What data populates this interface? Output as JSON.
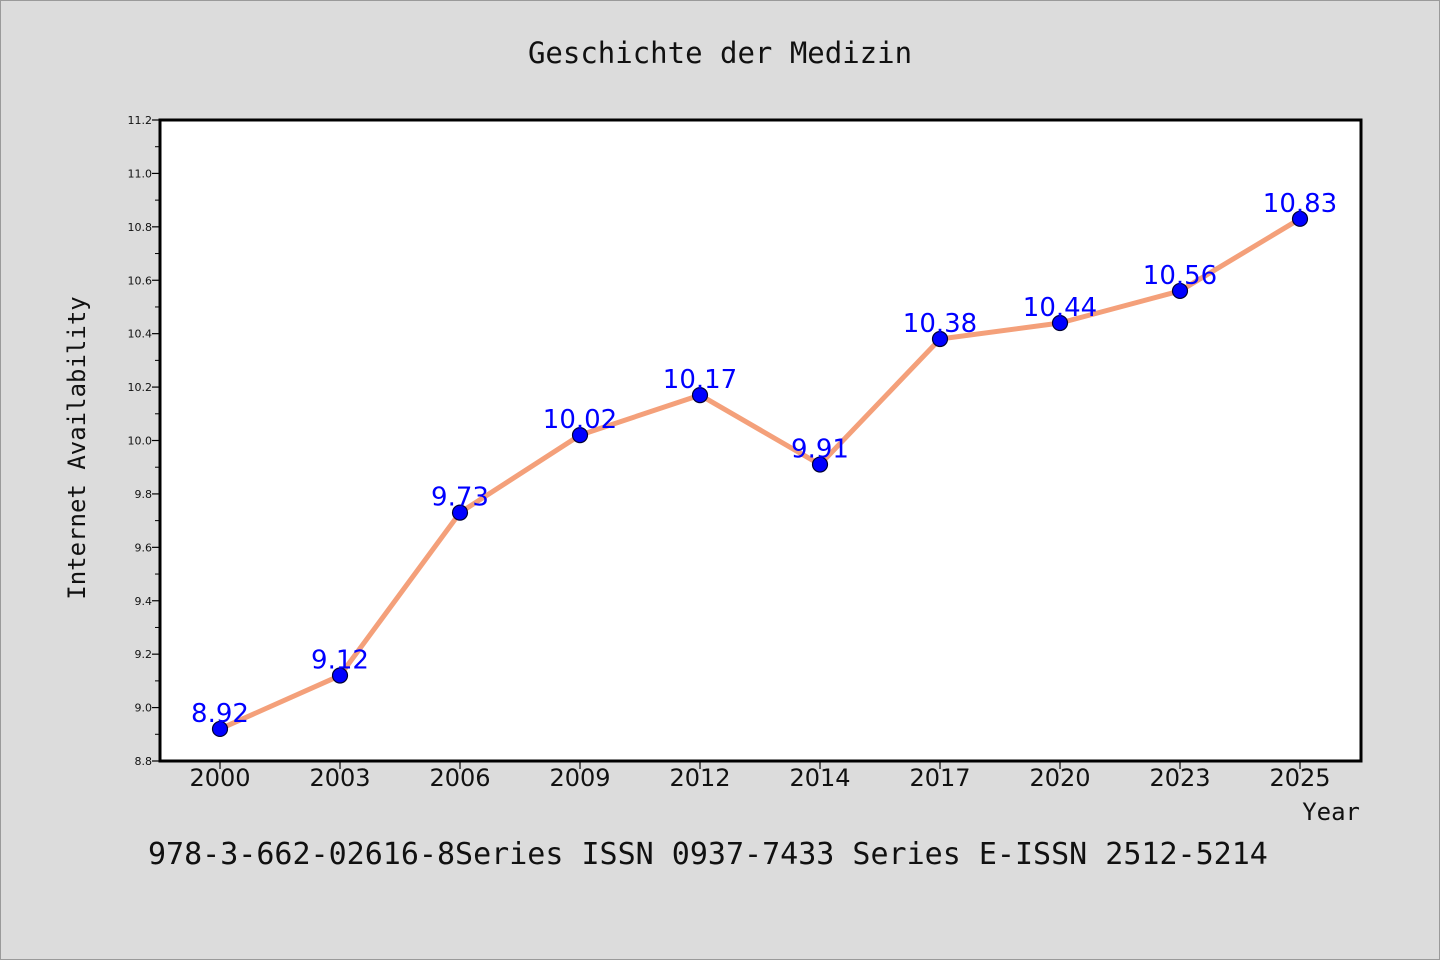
{
  "chart_data": {
    "type": "line",
    "title": "Geschichte der Medizin",
    "xlabel": "Year",
    "ylabel": "Internet Availability",
    "categories": [
      "2000",
      "2003",
      "2006",
      "2009",
      "2012",
      "2014",
      "2017",
      "2020",
      "2023",
      "2025"
    ],
    "series": [
      {
        "values": [
          8.92,
          9.12,
          9.73,
          10.02,
          10.17,
          9.91,
          10.38,
          10.44,
          10.56,
          10.83
        ],
        "data_labels": [
          "8.92",
          "9.12",
          "9.73",
          "10.02",
          "10.17",
          "9.91",
          "10.38",
          "10.44",
          "10.56",
          "10.83"
        ]
      }
    ],
    "ylim": [
      8.8,
      11.2
    ],
    "yticks": [
      "8.8",
      "9.0",
      "9.2",
      "9.4",
      "9.6",
      "9.8",
      "10.0",
      "10.2",
      "10.4",
      "10.6",
      "10.8",
      "11.0",
      "11.2"
    ],
    "grid": false,
    "legend": "none",
    "colors": {
      "line": "#f4a07a",
      "marker": "#0000ff",
      "label": "#0000ff",
      "background": "#dcdcdc",
      "plot_background": "#ffffff"
    }
  },
  "footer": "978-3-662-02616-8Series ISSN 0937-7433 Series E-ISSN 2512-5214"
}
